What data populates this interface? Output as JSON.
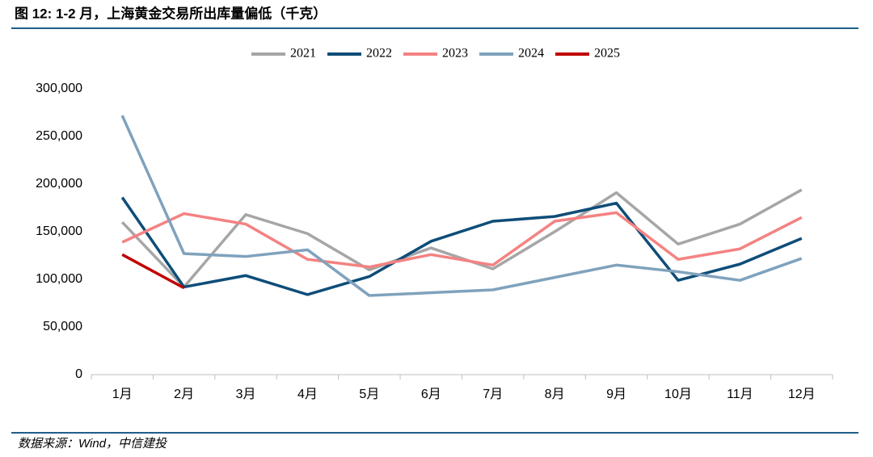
{
  "chart_data": {
    "type": "line",
    "title": "图 12: 1-2 月，上海黄金交易所出库量偏低（千克）",
    "categories": [
      "1月",
      "2月",
      "3月",
      "4月",
      "5月",
      "6月",
      "7月",
      "8月",
      "9月",
      "10月",
      "11月",
      "12月"
    ],
    "series": [
      {
        "name": "2021",
        "color": "#a6a6a6",
        "values": [
          160000,
          92000,
          168000,
          148000,
          110000,
          133000,
          111000,
          150000,
          191000,
          137000,
          158000,
          194000
        ]
      },
      {
        "name": "2022",
        "color": "#0e4d78",
        "values": [
          186000,
          92000,
          104000,
          84000,
          103000,
          140000,
          161000,
          166000,
          180000,
          99000,
          116000,
          143000
        ]
      },
      {
        "name": "2023",
        "color": "#f48282",
        "values": [
          139000,
          169000,
          158000,
          121000,
          113000,
          126000,
          115000,
          161000,
          170000,
          121000,
          132000,
          165000
        ]
      },
      {
        "name": "2024",
        "color": "#7fa2bd",
        "values": [
          272000,
          127000,
          124000,
          131000,
          83000,
          86000,
          89000,
          102000,
          115000,
          108000,
          99000,
          122000
        ]
      },
      {
        "name": "2025",
        "color": "#c00000",
        "values": [
          126000,
          91000,
          null,
          null,
          null,
          null,
          null,
          null,
          null,
          null,
          null,
          null
        ]
      }
    ],
    "ylim": [
      0,
      300000
    ],
    "yticks": [
      0,
      {
        "value": 50000,
        "label": "50,000"
      },
      {
        "value": 100000,
        "label": "100,000"
      },
      {
        "value": 150000,
        "label": "150,000"
      },
      {
        "value": 200000,
        "label": "200,000"
      },
      {
        "value": 250000,
        "label": "250,000"
      },
      {
        "value": 300000,
        "label": "300,000"
      }
    ],
    "grid": false,
    "legend": "top"
  },
  "source": "数据来源：Wind，中信建投"
}
